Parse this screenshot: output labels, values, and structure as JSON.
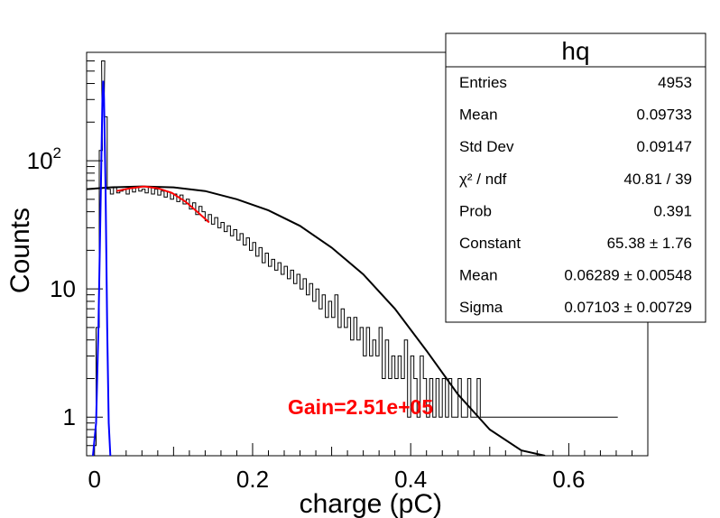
{
  "chart_data": {
    "type": "line",
    "title": "",
    "xlabel": "charge (pC)",
    "ylabel": "Counts",
    "xlim": [
      -0.01,
      0.7
    ],
    "ylim": [
      0.5,
      700
    ],
    "yscale": "log",
    "x_ticks": [
      {
        "value": 0,
        "label": "0"
      },
      {
        "value": 0.2,
        "label": "0.2"
      },
      {
        "value": 0.4,
        "label": "0.4"
      },
      {
        "value": 0.6,
        "label": "0.6"
      }
    ],
    "y_ticks": [
      {
        "value": 1,
        "label": "1"
      },
      {
        "value": 10,
        "label": "10"
      },
      {
        "value": 100,
        "label": "10",
        "sup": "2"
      }
    ],
    "histogram": {
      "name": "hq",
      "color": "#000000",
      "points": [
        [
          0.0,
          0.6
        ],
        [
          0.004,
          5
        ],
        [
          0.008,
          120
        ],
        [
          0.011,
          600
        ],
        [
          0.014,
          220
        ],
        [
          0.018,
          60
        ],
        [
          0.022,
          55
        ],
        [
          0.026,
          62
        ],
        [
          0.03,
          56
        ],
        [
          0.034,
          58
        ],
        [
          0.038,
          60
        ],
        [
          0.042,
          55
        ],
        [
          0.046,
          61
        ],
        [
          0.05,
          57
        ],
        [
          0.054,
          63
        ],
        [
          0.058,
          58
        ],
        [
          0.062,
          60
        ],
        [
          0.066,
          56
        ],
        [
          0.07,
          62
        ],
        [
          0.074,
          55
        ],
        [
          0.078,
          60
        ],
        [
          0.082,
          54
        ],
        [
          0.086,
          58
        ],
        [
          0.09,
          52
        ],
        [
          0.094,
          57
        ],
        [
          0.098,
          50
        ],
        [
          0.102,
          55
        ],
        [
          0.106,
          48
        ],
        [
          0.11,
          54
        ],
        [
          0.114,
          46
        ],
        [
          0.118,
          50
        ],
        [
          0.122,
          42
        ],
        [
          0.126,
          47
        ],
        [
          0.13,
          38
        ],
        [
          0.134,
          44
        ],
        [
          0.138,
          40
        ],
        [
          0.142,
          34
        ],
        [
          0.146,
          38
        ],
        [
          0.15,
          32
        ],
        [
          0.154,
          36
        ],
        [
          0.158,
          30
        ],
        [
          0.162,
          33
        ],
        [
          0.166,
          28
        ],
        [
          0.17,
          31
        ],
        [
          0.174,
          26
        ],
        [
          0.178,
          29
        ],
        [
          0.182,
          24
        ],
        [
          0.186,
          27
        ],
        [
          0.19,
          22
        ],
        [
          0.194,
          25
        ],
        [
          0.198,
          20
        ],
        [
          0.202,
          23
        ],
        [
          0.206,
          18
        ],
        [
          0.21,
          21
        ],
        [
          0.214,
          16
        ],
        [
          0.218,
          19
        ],
        [
          0.222,
          15
        ],
        [
          0.226,
          17
        ],
        [
          0.23,
          14
        ],
        [
          0.234,
          16
        ],
        [
          0.238,
          13
        ],
        [
          0.242,
          15
        ],
        [
          0.246,
          12
        ],
        [
          0.25,
          14
        ],
        [
          0.254,
          11
        ],
        [
          0.258,
          13
        ],
        [
          0.262,
          10
        ],
        [
          0.266,
          12
        ],
        [
          0.27,
          9
        ],
        [
          0.274,
          11
        ],
        [
          0.278,
          8
        ],
        [
          0.282,
          10
        ],
        [
          0.286,
          7
        ],
        [
          0.29,
          9
        ],
        [
          0.294,
          6
        ],
        [
          0.298,
          8
        ],
        [
          0.302,
          6
        ],
        [
          0.306,
          9
        ],
        [
          0.31,
          5
        ],
        [
          0.314,
          7
        ],
        [
          0.318,
          5
        ],
        [
          0.322,
          6
        ],
        [
          0.326,
          4
        ],
        [
          0.33,
          6
        ],
        [
          0.334,
          4
        ],
        [
          0.338,
          5
        ],
        [
          0.342,
          3
        ],
        [
          0.346,
          5
        ],
        [
          0.35,
          3
        ],
        [
          0.354,
          4
        ],
        [
          0.358,
          3
        ],
        [
          0.362,
          5
        ],
        [
          0.366,
          2
        ],
        [
          0.37,
          4
        ],
        [
          0.374,
          2
        ],
        [
          0.378,
          3
        ],
        [
          0.382,
          2
        ],
        [
          0.386,
          3
        ],
        [
          0.39,
          2
        ],
        [
          0.394,
          4
        ],
        [
          0.398,
          1
        ],
        [
          0.402,
          3
        ],
        [
          0.406,
          2
        ],
        [
          0.41,
          1
        ],
        [
          0.414,
          3
        ],
        [
          0.418,
          2
        ],
        [
          0.422,
          1
        ],
        [
          0.426,
          2
        ],
        [
          0.43,
          1
        ],
        [
          0.434,
          2
        ],
        [
          0.438,
          1
        ],
        [
          0.442,
          2
        ],
        [
          0.446,
          1
        ],
        [
          0.45,
          2
        ],
        [
          0.454,
          1
        ],
        [
          0.458,
          1
        ],
        [
          0.462,
          2
        ],
        [
          0.466,
          1
        ],
        [
          0.47,
          1
        ],
        [
          0.474,
          2
        ],
        [
          0.478,
          1
        ],
        [
          0.482,
          1
        ],
        [
          0.486,
          2
        ],
        [
          0.49,
          1
        ],
        [
          0.494,
          1
        ],
        [
          0.498,
          1
        ],
        [
          0.502,
          1
        ],
        [
          0.506,
          1
        ],
        [
          0.51,
          1
        ],
        [
          0.514,
          1
        ],
        [
          0.518,
          1
        ],
        [
          0.522,
          1
        ],
        [
          0.526,
          1
        ],
        [
          0.53,
          1
        ],
        [
          0.534,
          1
        ],
        [
          0.538,
          1
        ],
        [
          0.546,
          1
        ],
        [
          0.554,
          1
        ],
        [
          0.562,
          1
        ],
        [
          0.574,
          1
        ],
        [
          0.586,
          1
        ],
        [
          0.61,
          1
        ],
        [
          0.634,
          1
        ],
        [
          0.66,
          1
        ]
      ]
    },
    "curves": [
      {
        "name": "total-fit",
        "color": "#000000",
        "points": [
          [
            -0.01,
            60
          ],
          [
            0.02,
            62
          ],
          [
            0.06,
            63
          ],
          [
            0.1,
            62
          ],
          [
            0.14,
            58
          ],
          [
            0.18,
            50
          ],
          [
            0.22,
            41
          ],
          [
            0.26,
            31
          ],
          [
            0.3,
            21
          ],
          [
            0.34,
            13
          ],
          [
            0.38,
            7
          ],
          [
            0.42,
            3.3
          ],
          [
            0.46,
            1.5
          ],
          [
            0.5,
            0.8
          ],
          [
            0.54,
            0.55
          ],
          [
            0.57,
            0.5
          ]
        ]
      },
      {
        "name": "local-fit",
        "color": "#ff0000",
        "points": [
          [
            0.028,
            58
          ],
          [
            0.045,
            61
          ],
          [
            0.063,
            63
          ],
          [
            0.08,
            61
          ],
          [
            0.098,
            56
          ],
          [
            0.115,
            48
          ],
          [
            0.13,
            40
          ],
          [
            0.145,
            33
          ]
        ]
      },
      {
        "name": "pedestal-fit",
        "color": "#0000ff",
        "points": [
          [
            -0.002,
            0.5
          ],
          [
            0.002,
            0.9
          ],
          [
            0.005,
            5
          ],
          [
            0.008,
            60
          ],
          [
            0.01,
            300
          ],
          [
            0.011,
            420
          ],
          [
            0.012,
            300
          ],
          [
            0.014,
            60
          ],
          [
            0.016,
            5
          ],
          [
            0.018,
            0.9
          ],
          [
            0.02,
            0.5
          ]
        ]
      }
    ],
    "annotation": {
      "text": "Gain=2.51e+05",
      "color": "#ff0000"
    }
  },
  "stats_box": {
    "title": "hq",
    "rows": [
      {
        "label": "Entries",
        "value": "4953"
      },
      {
        "label": "Mean",
        "value": "0.09733"
      },
      {
        "label": "Std Dev",
        "value": "0.09147"
      },
      {
        "label": "χ² / ndf",
        "value": "40.81 / 39"
      },
      {
        "label": "Prob",
        "value": "0.391"
      },
      {
        "label": "Constant",
        "value": "65.38 ± 1.76"
      },
      {
        "label": "Mean",
        "value": "0.06289 ± 0.00548"
      },
      {
        "label": "Sigma",
        "value": "0.07103 ± 0.00729"
      }
    ]
  }
}
